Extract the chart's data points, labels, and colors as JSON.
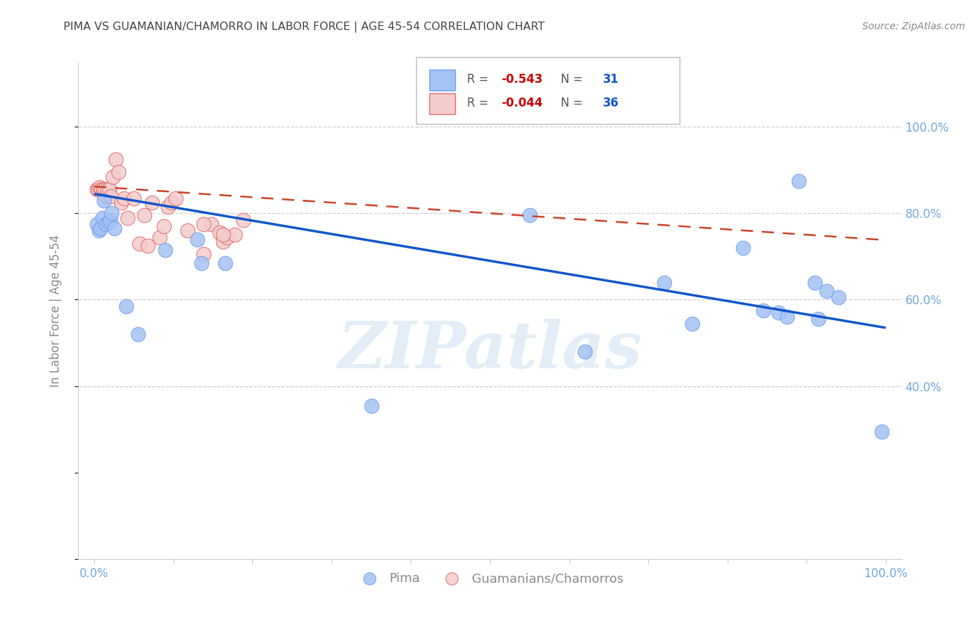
{
  "title": "PIMA VS GUAMANIAN/CHAMORRO IN LABOR FORCE | AGE 45-54 CORRELATION CHART",
  "source": "Source: ZipAtlas.com",
  "ylabel": "In Labor Force | Age 45-54",
  "xlim": [
    -0.02,
    1.02
  ],
  "ylim": [
    0.0,
    1.15
  ],
  "legend_blue_R": "-0.543",
  "legend_blue_N": "31",
  "legend_pink_R": "-0.044",
  "legend_pink_N": "36",
  "blue_scatter_x": [
    0.003,
    0.006,
    0.008,
    0.01,
    0.012,
    0.015,
    0.018,
    0.02,
    0.022,
    0.025,
    0.04,
    0.055,
    0.09,
    0.13,
    0.135,
    0.165,
    0.35,
    0.55,
    0.62,
    0.72,
    0.755,
    0.82,
    0.845,
    0.865,
    0.875,
    0.89,
    0.91,
    0.915,
    0.925,
    0.94,
    0.995
  ],
  "blue_scatter_y": [
    0.775,
    0.76,
    0.765,
    0.79,
    0.83,
    0.775,
    0.78,
    0.785,
    0.8,
    0.765,
    0.585,
    0.52,
    0.715,
    0.74,
    0.685,
    0.685,
    0.355,
    0.795,
    0.48,
    0.64,
    0.545,
    0.72,
    0.575,
    0.57,
    0.56,
    0.875,
    0.64,
    0.555,
    0.62,
    0.605,
    0.295
  ],
  "pink_scatter_x": [
    0.003,
    0.005,
    0.007,
    0.009,
    0.011,
    0.013,
    0.015,
    0.017,
    0.019,
    0.021,
    0.024,
    0.027,
    0.031,
    0.034,
    0.038,
    0.042,
    0.05,
    0.057,
    0.063,
    0.068,
    0.073,
    0.083,
    0.088,
    0.093,
    0.098,
    0.103,
    0.118,
    0.138,
    0.148,
    0.158,
    0.163,
    0.168,
    0.178,
    0.188,
    0.138,
    0.163
  ],
  "pink_scatter_y": [
    0.855,
    0.855,
    0.86,
    0.855,
    0.855,
    0.855,
    0.84,
    0.855,
    0.855,
    0.84,
    0.885,
    0.925,
    0.895,
    0.825,
    0.835,
    0.79,
    0.835,
    0.73,
    0.795,
    0.725,
    0.825,
    0.745,
    0.77,
    0.815,
    0.825,
    0.835,
    0.76,
    0.705,
    0.775,
    0.755,
    0.735,
    0.745,
    0.75,
    0.785,
    0.775,
    0.75
  ],
  "blue_line_x": [
    0.0,
    1.0
  ],
  "blue_line_y": [
    0.845,
    0.535
  ],
  "pink_line_x": [
    0.0,
    1.0
  ],
  "pink_line_y": [
    0.862,
    0.738
  ],
  "watermark": "ZIPatlas",
  "background_color": "#ffffff",
  "blue_color": "#a4c2f4",
  "pink_color": "#f4cccc",
  "blue_edge_color": "#6d9eeb",
  "pink_edge_color": "#e06666",
  "blue_line_color": "#1155cc",
  "pink_line_color": "#cc4125",
  "grid_color": "#cccccc",
  "title_color": "#434343",
  "right_axis_color": "#6fa8dc",
  "watermark_color": "#cfe2f3"
}
